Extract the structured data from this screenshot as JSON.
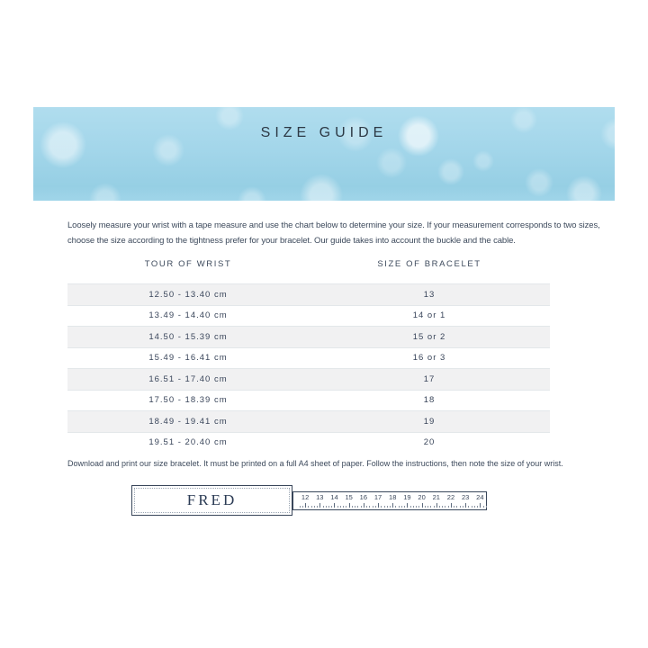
{
  "banner": {
    "title": "SIZE GUIDE",
    "background_color": "#a3d6ea"
  },
  "intro": {
    "line1": "Loosely measure your wrist with a tape measure and use the chart below to determine your size. If your measurement corresponds to two sizes,",
    "line2": "choose the size according to the tightness prefer for your bracelet. Our guide takes into account the buckle and the cable."
  },
  "table": {
    "headers": [
      "TOUR OF WRIST",
      "SIZE OF BRACELET"
    ],
    "rows": [
      {
        "wrist": "12.50 - 13.40 cm",
        "size": "13"
      },
      {
        "wrist": "13.49 - 14.40 cm",
        "size": "14 or 1"
      },
      {
        "wrist": "14.50 - 15.39 cm",
        "size": "15 or 2"
      },
      {
        "wrist": "15.49 - 16.41 cm",
        "size": "16 or 3"
      },
      {
        "wrist": "16.51 - 17.40 cm",
        "size": "17"
      },
      {
        "wrist": "17.50 - 18.39 cm",
        "size": "18"
      },
      {
        "wrist": "18.49 - 19.41 cm",
        "size": "19"
      },
      {
        "wrist": "19.51 - 20.40 cm",
        "size": "20"
      }
    ]
  },
  "footer": {
    "note": "Download and print our size bracelet. It must be printed on a full A4 sheet of paper. Follow the instructions, then note the size of your wrist."
  },
  "ruler": {
    "brand": "FRED",
    "numbers": [
      12,
      13,
      14,
      15,
      16,
      17,
      18,
      19,
      20,
      21,
      22,
      23,
      24
    ]
  },
  "colors": {
    "text": "#3d4a5c",
    "title": "#2d3945",
    "row_alt_background": "#f1f1f2",
    "row_border": "#e3e7ea",
    "ruler_border": "#39465a",
    "banner_blue": "#a3d6ea"
  }
}
